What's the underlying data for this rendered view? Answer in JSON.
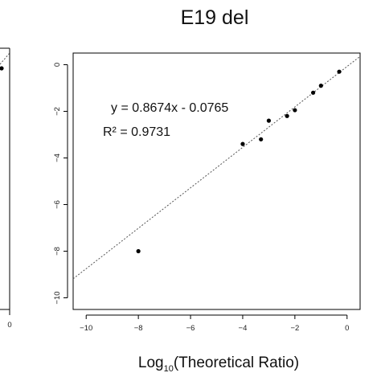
{
  "chart_data": [
    {
      "type": "scatter",
      "title": "",
      "xlabel": "",
      "ylabel": "",
      "x_ticks": [
        "0"
      ],
      "x_values_near_right_edge": [
        0
      ],
      "partial": true,
      "visible_points": [
        {
          "x": -0.2,
          "y": -0.3
        }
      ],
      "colors": {
        "points": "#000000",
        "fit_line": "#555555",
        "frame": "#000000"
      }
    },
    {
      "type": "scatter",
      "title": "E19 del",
      "xlabel_prefix": "Log",
      "xlabel_sub": "10",
      "xlabel_suffix": "(Theoretical Ratio)",
      "ylabel": "",
      "xlim": [
        -10.5,
        0.5
      ],
      "ylim": [
        -10.5,
        0.5
      ],
      "x_ticks": [
        -10,
        -8,
        -6,
        -4,
        -2,
        0
      ],
      "y_ticks": [
        0,
        -2,
        -4,
        -6,
        -8,
        -10
      ],
      "x_tick_labels": [
        "−10",
        "−8",
        "−6",
        "−4",
        "−2",
        "0"
      ],
      "y_tick_labels": [
        "0",
        "−2",
        "−4",
        "−6",
        "−8",
        "−10"
      ],
      "points": [
        {
          "x": -8.0,
          "y": -8.0
        },
        {
          "x": -4.0,
          "y": -3.4
        },
        {
          "x": -3.3,
          "y": -3.2
        },
        {
          "x": -3.0,
          "y": -2.4
        },
        {
          "x": -2.3,
          "y": -2.2
        },
        {
          "x": -2.0,
          "y": -1.95
        },
        {
          "x": -1.3,
          "y": -1.2
        },
        {
          "x": -1.0,
          "y": -0.9
        },
        {
          "x": -0.3,
          "y": -0.3
        }
      ],
      "fit": {
        "slope": 0.8674,
        "intercept": -0.0765,
        "style": "dashed"
      },
      "equation_text": "y = 0.8674x - 0.0765",
      "r2_text": "R² = 0.9731",
      "grid": false,
      "legend": "none",
      "colors": {
        "points": "#000000",
        "fit_line": "#555555",
        "frame": "#000000"
      }
    }
  ]
}
